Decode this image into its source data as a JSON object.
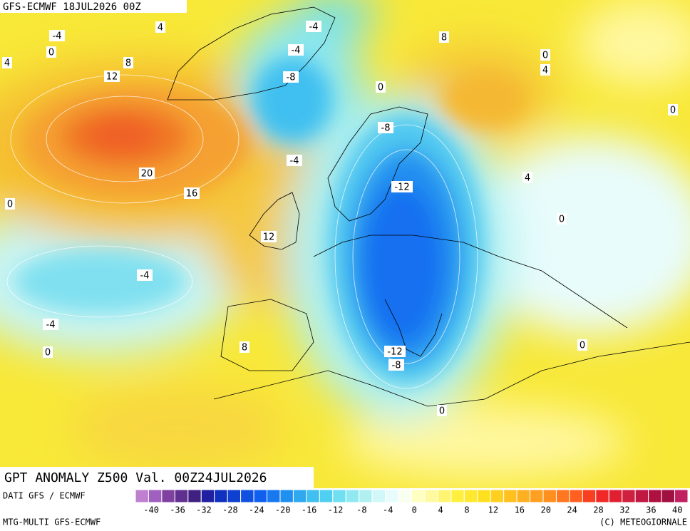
{
  "header": {
    "run": "GFS-ECMWF 18JUL2026 00Z"
  },
  "title": "GPT ANOMALY Z500 Val. 00Z24JUL2026",
  "source": "DATI GFS / ECMWF",
  "model": "MTG-MULTI GFS-ECMWF",
  "copyright": "(C) METEOGIORNALE",
  "contour_labels": [
    -4,
    4,
    0,
    4,
    8,
    12,
    -4,
    -4,
    -8,
    0,
    8,
    0,
    4,
    0,
    -8,
    -4,
    20,
    16,
    -12,
    4,
    0,
    0,
    12,
    -4,
    -4,
    0,
    8,
    -12,
    -8,
    0,
    0
  ],
  "colorbar": {
    "ticks": [
      -40,
      -36,
      -32,
      -28,
      -24,
      -20,
      -16,
      -12,
      -8,
      -4,
      0,
      4,
      8,
      12,
      16,
      20,
      24,
      28,
      32,
      36,
      40
    ],
    "colors": [
      "#c080d0",
      "#a060c0",
      "#8040a0",
      "#603090",
      "#402080",
      "#2020a0",
      "#1030c0",
      "#1040d0",
      "#1050e0",
      "#1060f0",
      "#1878f0",
      "#2090f0",
      "#30a8f0",
      "#40c0f0",
      "#50d0f0",
      "#70e0f0",
      "#90e8f0",
      "#b0f0f0",
      "#d0f8f8",
      "#e8fcfc",
      "#f8fff0",
      "#ffffc0",
      "#fffaa0",
      "#fff570",
      "#fff040",
      "#ffe830",
      "#ffe020",
      "#ffd020",
      "#ffc020",
      "#ffb020",
      "#ffa020",
      "#ff9020",
      "#ff7820",
      "#ff6020",
      "#f84020",
      "#f02828",
      "#e02030",
      "#d02040",
      "#c01840",
      "#b01040",
      "#a01040",
      "#c02060"
    ]
  }
}
